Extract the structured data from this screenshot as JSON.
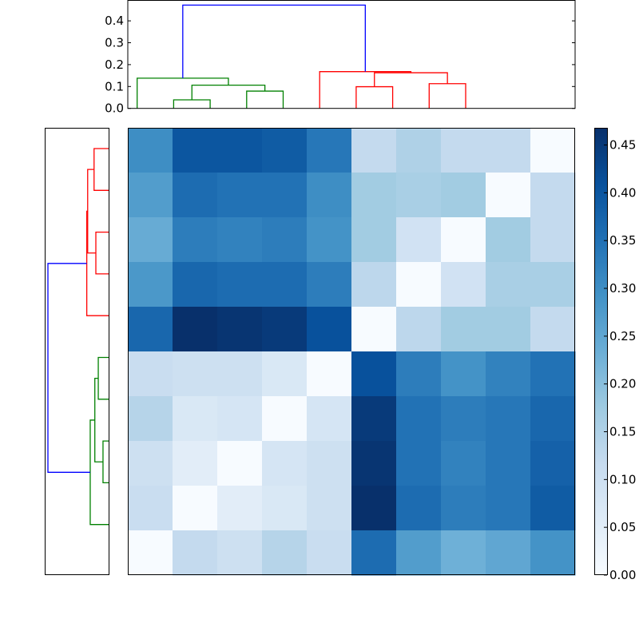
{
  "chart_data": {
    "type": "heatmap",
    "title": "",
    "heatmap": {
      "rows": 10,
      "cols": 10,
      "values": [
        [
          0.3,
          0.4,
          0.4,
          0.39,
          0.34,
          0.12,
          0.15,
          0.12,
          0.12,
          0.0
        ],
        [
          0.27,
          0.36,
          0.35,
          0.35,
          0.3,
          0.17,
          0.16,
          0.17,
          0.0,
          0.12
        ],
        [
          0.24,
          0.33,
          0.32,
          0.33,
          0.29,
          0.17,
          0.09,
          0.0,
          0.17,
          0.12
        ],
        [
          0.28,
          0.37,
          0.36,
          0.36,
          0.33,
          0.13,
          0.0,
          0.09,
          0.16,
          0.16
        ],
        [
          0.37,
          0.47,
          0.46,
          0.45,
          0.41,
          0.0,
          0.13,
          0.17,
          0.17,
          0.12
        ],
        [
          0.11,
          0.1,
          0.1,
          0.07,
          0.0,
          0.41,
          0.33,
          0.29,
          0.32,
          0.35
        ],
        [
          0.14,
          0.07,
          0.08,
          0.0,
          0.08,
          0.45,
          0.35,
          0.33,
          0.34,
          0.37
        ],
        [
          0.1,
          0.05,
          0.0,
          0.08,
          0.1,
          0.46,
          0.35,
          0.32,
          0.34,
          0.38
        ],
        [
          0.11,
          0.0,
          0.05,
          0.07,
          0.1,
          0.47,
          0.36,
          0.33,
          0.34,
          0.39
        ],
        [
          0.0,
          0.12,
          0.1,
          0.14,
          0.11,
          0.36,
          0.27,
          0.23,
          0.25,
          0.29
        ]
      ],
      "colormap": "Blues",
      "vmin": 0.0,
      "vmax": 0.468
    },
    "colorbar": {
      "ticks": [
        0.0,
        0.05,
        0.1,
        0.15,
        0.2,
        0.25,
        0.3,
        0.35,
        0.4,
        0.45
      ],
      "tick_labels": [
        "0.00",
        "0.05",
        "0.10",
        "0.15",
        "0.20",
        "0.25",
        "0.30",
        "0.35",
        "0.40",
        "0.45"
      ]
    },
    "top_dendrogram": {
      "orientation": "top",
      "ylim": [
        0.0,
        0.49
      ],
      "yticks": [
        0.0,
        0.1,
        0.2,
        0.3,
        0.4
      ],
      "ytick_labels": [
        "0.0",
        "0.1",
        "0.2",
        "0.3",
        "0.4"
      ],
      "links": [
        {
          "a": 1,
          "b": 2,
          "h": 0.039,
          "ha": 0,
          "hb": 0,
          "color": "#008000"
        },
        {
          "a": 3,
          "b": 4,
          "h": 0.079,
          "ha": 0,
          "hb": 0,
          "color": "#008000"
        },
        {
          "a": 1.5,
          "b": 3.5,
          "h": 0.106,
          "ha": 0.039,
          "hb": 0.079,
          "color": "#008000"
        },
        {
          "a": 0,
          "b": 2.5,
          "h": 0.138,
          "ha": 0,
          "hb": 0.106,
          "color": "#008000"
        },
        {
          "a": 6,
          "b": 7,
          "h": 0.099,
          "ha": 0,
          "hb": 0,
          "color": "#ff0000"
        },
        {
          "a": 8,
          "b": 9,
          "h": 0.113,
          "ha": 0,
          "hb": 0,
          "color": "#ff0000"
        },
        {
          "a": 6.5,
          "b": 8.5,
          "h": 0.163,
          "ha": 0.099,
          "hb": 0.113,
          "color": "#ff0000"
        },
        {
          "a": 5,
          "b": 7.5,
          "h": 0.168,
          "ha": 0,
          "hb": 0.163,
          "color": "#ff0000"
        },
        {
          "a": 1.25,
          "b": 6.25,
          "h": 0.472,
          "ha": 0.138,
          "hb": 0.168,
          "color": "#0000ff"
        }
      ]
    },
    "left_dendrogram": {
      "orientation": "left",
      "links": [
        {
          "a": 0,
          "b": 1,
          "h": 0.114,
          "ha": 0,
          "hb": 0,
          "color": "#ff0000"
        },
        {
          "a": 2,
          "b": 3,
          "h": 0.1,
          "ha": 0,
          "hb": 0,
          "color": "#ff0000"
        },
        {
          "a": 0.5,
          "b": 2.5,
          "h": 0.164,
          "ha": 0.114,
          "hb": 0.1,
          "color": "#ff0000"
        },
        {
          "a": 1.5,
          "b": 4,
          "h": 0.171,
          "ha": 0.164,
          "hb": 0,
          "color": "#ff0000"
        },
        {
          "a": 5,
          "b": 6,
          "h": 0.081,
          "ha": 0,
          "hb": 0,
          "color": "#008000"
        },
        {
          "a": 7,
          "b": 8,
          "h": 0.044,
          "ha": 0,
          "hb": 0,
          "color": "#008000"
        },
        {
          "a": 5.5,
          "b": 7.5,
          "h": 0.108,
          "ha": 0.081,
          "hb": 0.044,
          "color": "#008000"
        },
        {
          "a": 6.5,
          "b": 9,
          "h": 0.144,
          "ha": 0.108,
          "hb": 0,
          "color": "#008000"
        },
        {
          "a": 2.75,
          "b": 7.75,
          "h": 0.475,
          "ha": 0.171,
          "hb": 0.144,
          "color": "#0000ff"
        }
      ]
    }
  }
}
